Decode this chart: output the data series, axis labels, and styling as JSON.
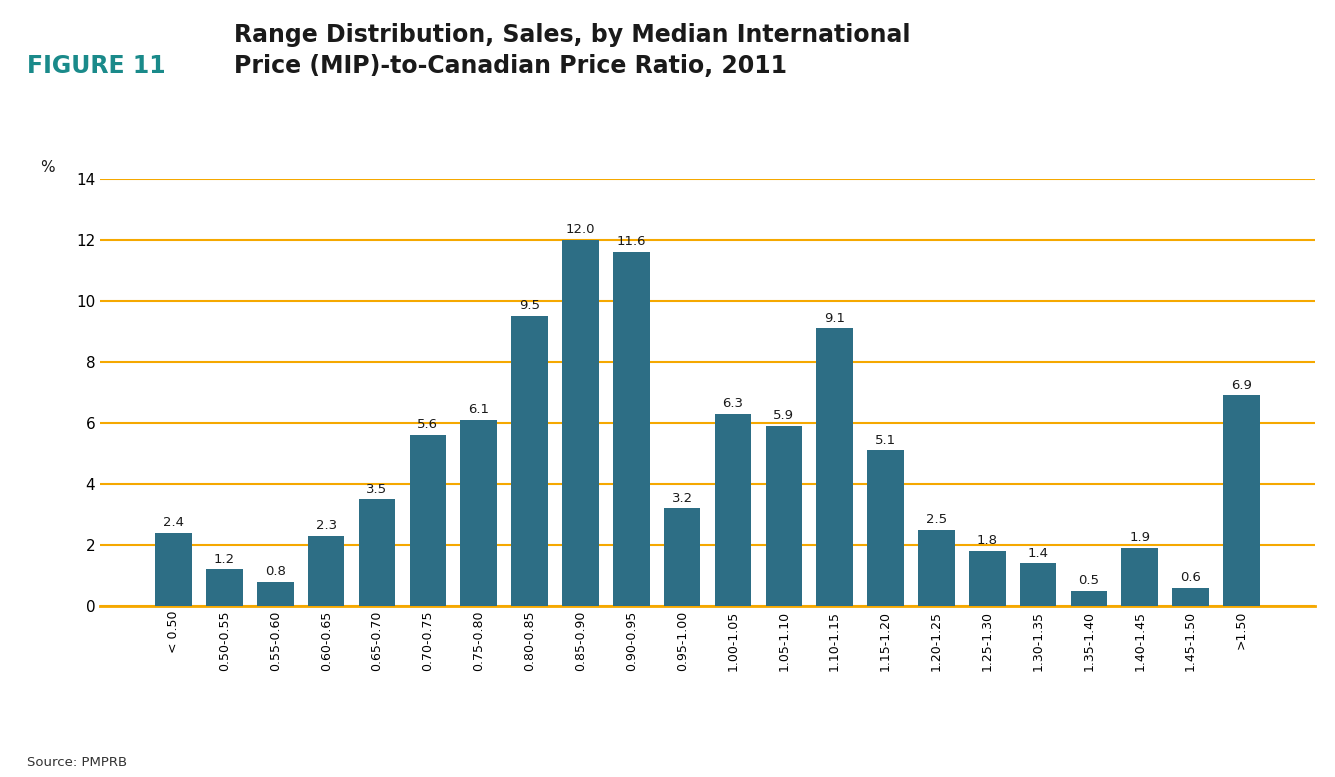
{
  "title_label": "FIGURE 11",
  "title_text": "Range Distribution, Sales, by Median International\nPrice (MIP)-to-Canadian Price Ratio, 2011",
  "pct_label": "%",
  "source": "Source: PMPRB",
  "bar_color": "#2d6e85",
  "categories": [
    "< 0.50",
    "0.50-0.55",
    "0.55-0.60",
    "0.60-0.65",
    "0.65-0.70",
    "0.70-0.75",
    "0.75-0.80",
    "0.80-0.85",
    "0.85-0.90",
    "0.90-0.95",
    "0.95-1.00",
    "1.00-1.05",
    "1.05-1.10",
    "1.10-1.15",
    "1.15-1.20",
    "1.20-1.25",
    "1.25-1.30",
    "1.30-1.35",
    "1.35-1.40",
    "1.40-1.45",
    "1.45-1.50",
    ">1.50"
  ],
  "values": [
    2.4,
    1.2,
    0.8,
    2.3,
    3.5,
    5.6,
    6.1,
    9.5,
    12.0,
    11.6,
    3.2,
    6.3,
    5.9,
    9.1,
    5.1,
    2.5,
    1.8,
    1.4,
    0.5,
    1.9,
    0.6,
    6.9
  ],
  "ylim": [
    0,
    14
  ],
  "yticks": [
    0,
    2,
    4,
    6,
    8,
    10,
    12,
    14
  ],
  "grid_color": "#f5a800",
  "title_color": "#1a8a8a",
  "text_color": "#1a1a1a",
  "background_color": "#ffffff",
  "separator_color": "#f5a800",
  "title_label_fontsize": 17,
  "title_text_fontsize": 17,
  "bar_label_fontsize": 9.5,
  "ytick_fontsize": 11,
  "xtick_fontsize": 9,
  "source_fontsize": 9.5
}
